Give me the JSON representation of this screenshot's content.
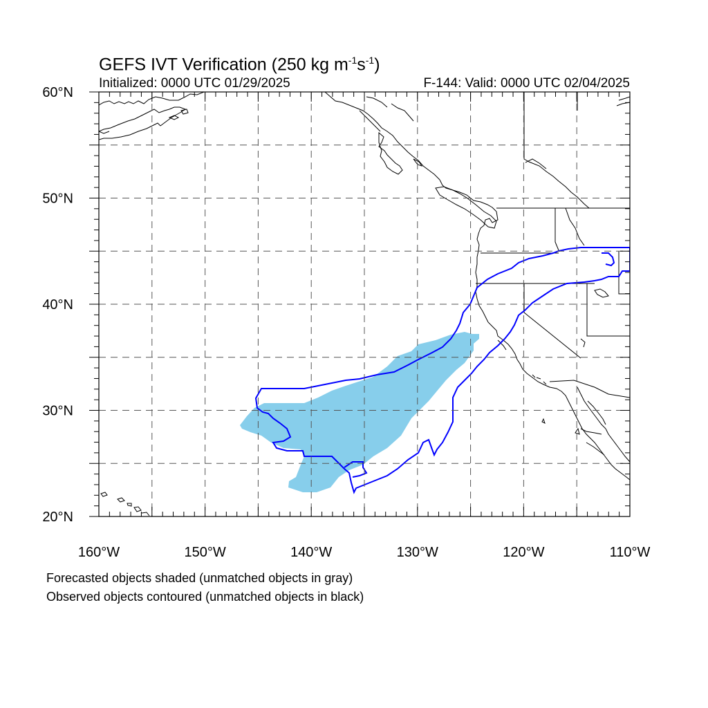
{
  "title": {
    "prefix": "GEFS IVT Verification (250 kg m",
    "sup1": "-1",
    "mid": "s",
    "sup2": "-1",
    "suffix": ")"
  },
  "initialized": "Initialized: 0000 UTC 01/29/2025",
  "valid": "F-144: Valid: 0000 UTC 02/04/2025",
  "footnote_forecast": "Forecasted objects shaded (unmatched objects in gray)",
  "footnote_observed": "Observed objects contoured (unmatched objects in black)",
  "colors": {
    "forecast_fill": "#87ceeb",
    "observed_contour": "#0000ff",
    "coast": "#000000",
    "grid": "#555555"
  },
  "map": {
    "lon_range": [
      -160,
      -110
    ],
    "lat_range": [
      20,
      60
    ],
    "grid_spacing_deg": 5,
    "lat_ticks": [
      {
        "lat": 60,
        "label": "60°N"
      },
      {
        "lat": 50,
        "label": "50°N"
      },
      {
        "lat": 40,
        "label": "40°N"
      },
      {
        "lat": 30,
        "label": "30°N"
      },
      {
        "lat": 20,
        "label": "20°N"
      }
    ],
    "lon_ticks": [
      {
        "lon": -160,
        "label": "160°W"
      },
      {
        "lon": -150,
        "label": "150°W"
      },
      {
        "lon": -140,
        "label": "140°W"
      },
      {
        "lon": -130,
        "label": "130°W"
      },
      {
        "lon": -120,
        "label": "120°W"
      },
      {
        "lon": -110,
        "label": "110°W"
      }
    ]
  }
}
